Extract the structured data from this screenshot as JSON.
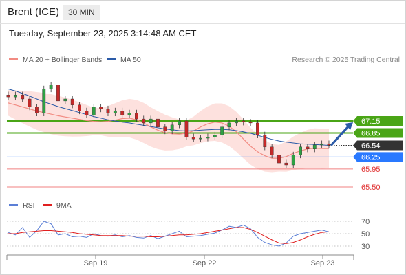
{
  "header": {
    "instrument": "Brent (ICE)",
    "timeframe": "30 MIN",
    "datetime": "Tuesday, September 23, 2025 3:14:48 AM CET"
  },
  "legend": {
    "ma20": {
      "label": "MA 20 + Bollinger Bands",
      "color": "#f28b82"
    },
    "ma50": {
      "label": "MA 50",
      "color": "#2b5ba8"
    },
    "credit": "Research © 2025 Trading Central"
  },
  "rsi_legend": {
    "rsi": {
      "label": "RSI",
      "color": "#5b7fd6"
    },
    "ma9": {
      "label": "9MA",
      "color": "#e02020"
    }
  },
  "chart_data": [
    {
      "type": "line",
      "title": "Brent (ICE) 30 MIN",
      "x_labels": [
        "Sep 19",
        "Sep 22",
        "Sep 23"
      ],
      "price_axis": [
        67.15,
        66.85,
        66.54,
        66.25,
        65.95,
        65.5
      ],
      "current_price": 66.54,
      "levels": [
        {
          "name": "resistance",
          "value": 67.15,
          "color": "#4aa516"
        },
        {
          "name": "resistance",
          "value": 66.85,
          "color": "#4aa516"
        },
        {
          "name": "pivot",
          "value": 66.25,
          "color": "#2979ff"
        },
        {
          "name": "support",
          "value": 65.95,
          "color": "#f08080"
        },
        {
          "name": "support",
          "value": 65.5,
          "color": "#f08080"
        }
      ],
      "series": [
        {
          "name": "MA 20",
          "color": "#f28b82",
          "values": [
            67.6,
            67.55,
            67.5,
            67.45,
            67.4,
            67.36,
            67.32,
            67.28,
            67.25,
            67.22,
            67.19,
            67.16,
            67.14,
            67.13,
            67.14,
            67.17,
            67.21,
            67.22,
            67.18,
            67.1,
            67.0,
            66.92,
            66.86,
            66.83,
            66.82,
            66.84,
            66.9,
            67.0,
            67.08,
            67.12,
            67.1,
            67.02,
            66.88,
            66.7,
            66.52,
            66.38,
            66.28,
            66.22,
            66.22,
            66.26,
            66.34,
            66.4,
            66.45,
            66.47,
            66.46,
            66.46
          ]
        },
        {
          "name": "MA 50",
          "color": "#2b5ba8",
          "values": [
            67.95,
            67.9,
            67.84,
            67.77,
            67.7,
            67.63,
            67.57,
            67.51,
            67.46,
            67.41,
            67.36,
            67.31,
            67.26,
            67.22,
            67.18,
            67.15,
            67.12,
            67.1,
            67.07,
            67.04,
            67.01,
            66.98,
            66.95,
            66.93,
            66.91,
            66.9,
            66.91,
            66.92,
            66.93,
            66.94,
            66.94,
            66.93,
            66.91,
            66.88,
            66.84,
            66.79,
            66.74,
            66.69,
            66.65,
            66.62,
            66.6,
            66.58,
            66.57,
            66.56,
            66.55,
            66.54
          ]
        },
        {
          "name": "Price",
          "color": "#222222",
          "values": [
            67.75,
            67.8,
            67.7,
            67.5,
            67.35,
            67.95,
            68.05,
            67.65,
            67.7,
            67.55,
            67.4,
            67.3,
            67.5,
            67.45,
            67.35,
            67.4,
            67.3,
            67.35,
            67.2,
            67.1,
            67.2,
            67.0,
            66.9,
            67.05,
            67.15,
            66.75,
            66.7,
            66.72,
            66.75,
            66.8,
            67.0,
            67.1,
            67.15,
            67.12,
            67.1,
            66.8,
            66.5,
            66.3,
            66.1,
            66.05,
            66.3,
            66.5,
            66.45,
            66.55,
            66.58,
            66.54
          ]
        }
      ],
      "projection_arrow": {
        "from": 66.54,
        "to": 67.15
      }
    },
    {
      "type": "line",
      "title": "RSI",
      "y_ticks": [
        70,
        50,
        30
      ],
      "series": [
        {
          "name": "RSI",
          "color": "#5b7fd6",
          "values": [
            52,
            48,
            60,
            44,
            55,
            70,
            66,
            48,
            50,
            45,
            46,
            44,
            50,
            47,
            46,
            48,
            45,
            47,
            44,
            43,
            47,
            42,
            46,
            50,
            54,
            45,
            46,
            47,
            49,
            51,
            56,
            62,
            60,
            64,
            58,
            44,
            36,
            32,
            30,
            35,
            46,
            50,
            52,
            54,
            56,
            53
          ]
        },
        {
          "name": "9MA",
          "color": "#e02020",
          "values": [
            50,
            50,
            52,
            53,
            54,
            55,
            55,
            54,
            53,
            52,
            50,
            49,
            48,
            47,
            47,
            47,
            47,
            46,
            46,
            46,
            45,
            45,
            46,
            47,
            48,
            48,
            49,
            50,
            52,
            54,
            56,
            58,
            60,
            60,
            57,
            52,
            46,
            40,
            35,
            34,
            36,
            40,
            45,
            49,
            52,
            53
          ]
        }
      ]
    }
  ]
}
